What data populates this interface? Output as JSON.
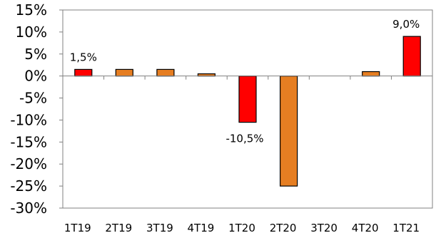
{
  "chart_data": {
    "type": "bar",
    "title": "",
    "xlabel": "",
    "ylabel": "",
    "categories": [
      "1T19",
      "2T19",
      "3T19",
      "4T19",
      "1T20",
      "2T20",
      "3T20",
      "4T20",
      "1T21"
    ],
    "values": [
      1.5,
      1.5,
      1.5,
      0.5,
      -10.5,
      -25.0,
      0.0,
      1.0,
      9.0
    ],
    "ylim": [
      -30,
      15
    ],
    "yticks": [
      15,
      10,
      5,
      0,
      -5,
      -10,
      -15,
      -20,
      -25,
      -30
    ],
    "ytick_labels": [
      "15%",
      "10%",
      "5%",
      "0%",
      "-5%",
      "-10%",
      "-15%",
      "-20%",
      "-25%",
      "-30%"
    ],
    "data_labels": [
      {
        "index": 0,
        "text": "1,5%"
      },
      {
        "index": 4,
        "text": "-10,5%"
      },
      {
        "index": 8,
        "text": "9,0%"
      }
    ],
    "highlight_indices": [
      0,
      4,
      8
    ],
    "grid": false,
    "legend": "none",
    "colors": {
      "highlight": "#ff0000",
      "normal": "#e67e22",
      "outline": "#000000",
      "axis": "#808080"
    }
  }
}
